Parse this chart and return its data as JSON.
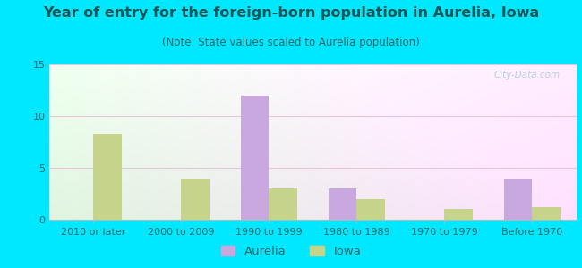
{
  "title": "Year of entry for the foreign-born population in Aurelia, Iowa",
  "subtitle": "(Note: State values scaled to Aurelia population)",
  "categories": [
    "2010 or later",
    "2000 to 2009",
    "1990 to 1999",
    "1980 to 1989",
    "1970 to 1979",
    "Before 1970"
  ],
  "aurelia_values": [
    0,
    0,
    12,
    3,
    0,
    4
  ],
  "iowa_values": [
    8.3,
    4.0,
    3.0,
    2.0,
    1.0,
    1.2
  ],
  "aurelia_color": "#c9a8e0",
  "iowa_color": "#c5d48a",
  "background_outer": "#00e8ff",
  "ylim": [
    0,
    15
  ],
  "yticks": [
    0,
    5,
    10,
    15
  ],
  "bar_width": 0.32,
  "title_fontsize": 11.5,
  "subtitle_fontsize": 8.5,
  "tick_fontsize": 8,
  "legend_fontsize": 9.5,
  "title_color": "#1a5555",
  "subtitle_color": "#336666",
  "tick_color": "#336666",
  "watermark_color": "#aacccc"
}
